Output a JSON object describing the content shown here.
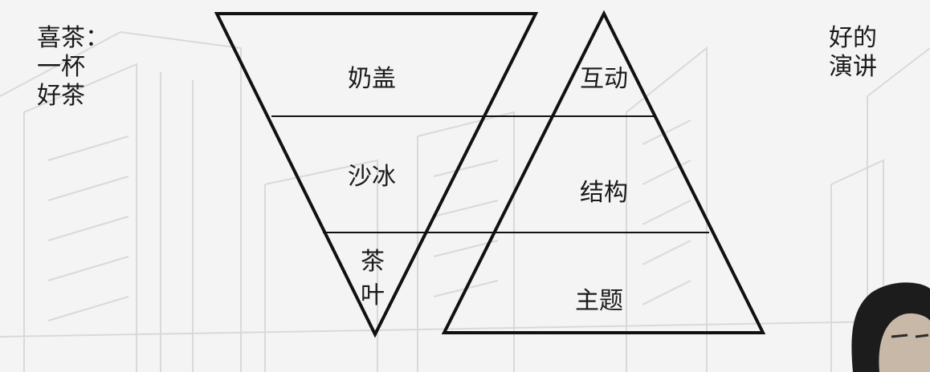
{
  "left_caption": [
    "喜茶：",
    "一杯",
    "好茶"
  ],
  "right_caption": [
    "好的",
    "演讲"
  ],
  "inverted_triangle": {
    "layers": [
      "奶盖",
      "沙冰"
    ],
    "bottom_layer": [
      "茶",
      "叶"
    ]
  },
  "upright_triangle": {
    "layers": [
      "互动",
      "结构",
      "主题"
    ]
  }
}
